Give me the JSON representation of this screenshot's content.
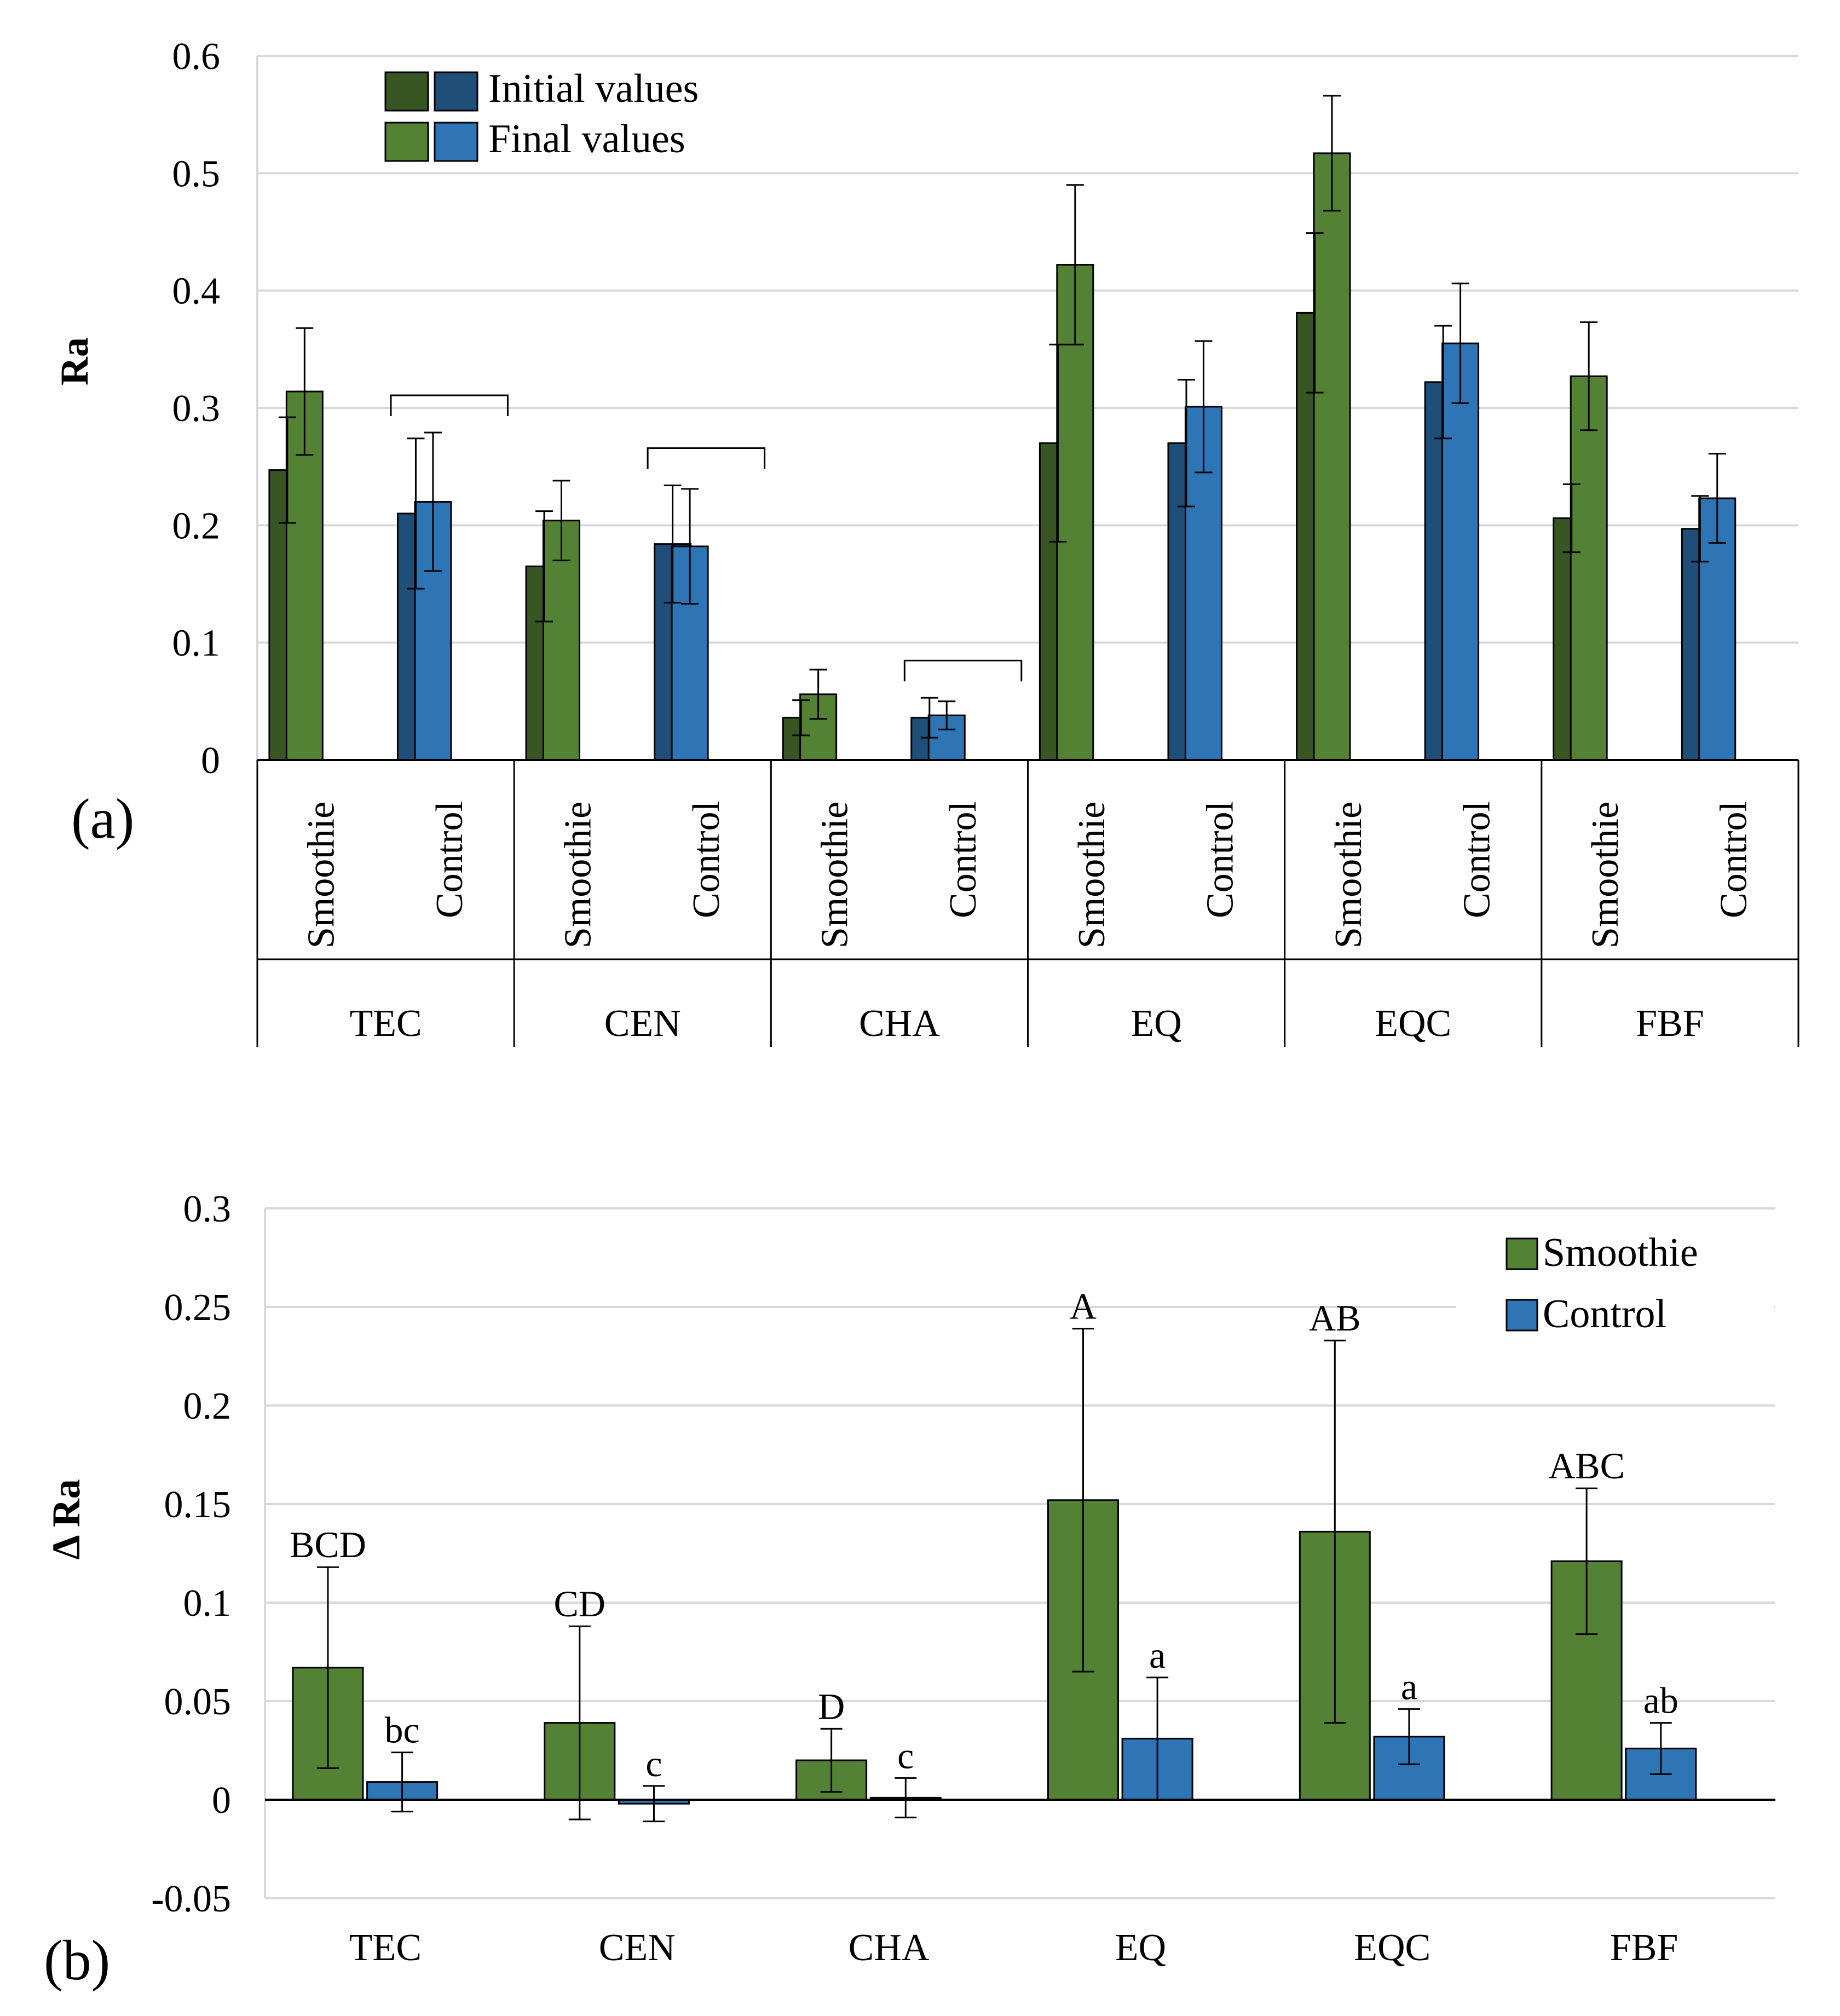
{
  "colors": {
    "smoothie_initial": "#375623",
    "smoothie_final": "#548235",
    "control_initial": "#1f4e79",
    "control_final": "#2e75b6",
    "grid": "#d9d9d9",
    "axis": "#000000"
  },
  "chart_data": [
    {
      "id": "a",
      "panel_label": "(a)",
      "type": "bar",
      "ylabel": "Ra",
      "ylim": [
        0,
        0.6
      ],
      "yticks": [
        0,
        0.1,
        0.2,
        0.3,
        0.4,
        0.5,
        0.6
      ],
      "ytick_labels": [
        "0",
        "0.1",
        "0.2",
        "0.3",
        "0.4",
        "0.5",
        "0.6"
      ],
      "grid": true,
      "legend_position": "top-left",
      "legend": {
        "row1_label": "Initial values",
        "row2_label": "Final values"
      },
      "categories": [
        "TEC",
        "CEN",
        "CHA",
        "EQ",
        "EQC",
        "FBF"
      ],
      "subcategories": [
        "Smoothie",
        "Control"
      ],
      "series": [
        {
          "name": "Smoothie initial",
          "color_key": "smoothie_initial",
          "values": [
            0.247,
            0.165,
            0.036,
            0.27,
            0.381,
            0.206
          ],
          "errors": [
            0.045,
            0.047,
            0.015,
            0.084,
            0.068,
            0.029
          ]
        },
        {
          "name": "Smoothie final",
          "color_key": "smoothie_final",
          "values": [
            0.314,
            0.204,
            0.056,
            0.422,
            0.517,
            0.327
          ],
          "errors": [
            0.054,
            0.034,
            0.021,
            0.068,
            0.049,
            0.046
          ]
        },
        {
          "name": "Control initial",
          "color_key": "control_initial",
          "values": [
            0.21,
            0.184,
            0.036,
            0.27,
            0.322,
            0.197
          ],
          "errors": [
            0.064,
            0.05,
            0.017,
            0.054,
            0.048,
            0.028
          ]
        },
        {
          "name": "Control final",
          "color_key": "control_final",
          "values": [
            0.22,
            0.182,
            0.038,
            0.301,
            0.355,
            0.223
          ],
          "errors": [
            0.059,
            0.049,
            0.012,
            0.056,
            0.051,
            0.038
          ]
        }
      ],
      "brackets_over_control": [
        "TEC",
        "CEN",
        "CHA"
      ]
    },
    {
      "id": "b",
      "panel_label": "(b)",
      "type": "bar",
      "ylabel": "Δ Ra",
      "ylim": [
        -0.05,
        0.3
      ],
      "yticks": [
        -0.05,
        0,
        0.05,
        0.1,
        0.15,
        0.2,
        0.25,
        0.3
      ],
      "ytick_labels": [
        "-0.05",
        "0",
        "0.05",
        "0.1",
        "0.15",
        "0.2",
        "0.25",
        "0.3"
      ],
      "grid": true,
      "legend_position": "top-right",
      "categories": [
        "TEC",
        "CEN",
        "CHA",
        "EQ",
        "EQC",
        "FBF"
      ],
      "series": [
        {
          "name": "Smoothie",
          "color_key": "smoothie_final",
          "values": [
            0.067,
            0.039,
            0.02,
            0.152,
            0.136,
            0.121
          ],
          "errors": [
            0.051,
            0.049,
            0.016,
            0.087,
            0.097,
            0.037
          ],
          "labels": [
            "BCD",
            "CD",
            "D",
            "A",
            "AB",
            "ABC"
          ]
        },
        {
          "name": "Control",
          "color_key": "control_final",
          "values": [
            0.009,
            -0.002,
            0.001,
            0.031,
            0.032,
            0.026
          ],
          "errors": [
            0.015,
            0.009,
            0.01,
            0.031,
            0.014,
            0.013
          ],
          "labels": [
            "bc",
            "c",
            "c",
            "a",
            "a",
            "ab"
          ]
        }
      ]
    }
  ]
}
